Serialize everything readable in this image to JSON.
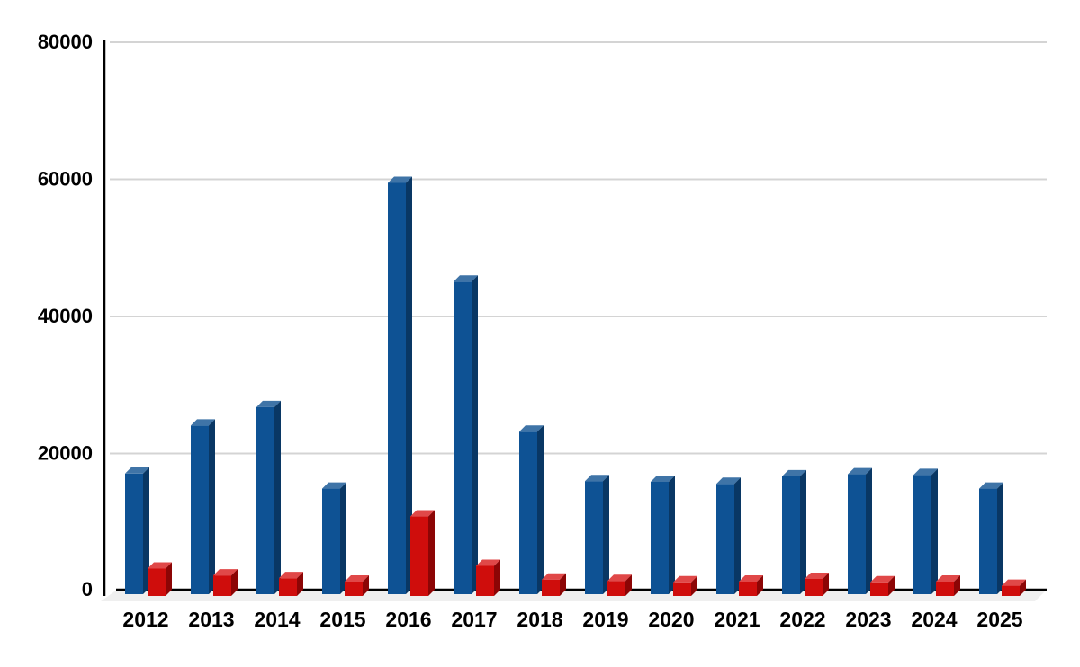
{
  "chart_data": {
    "type": "bar",
    "style": "3d-column-clustered",
    "title": "",
    "xlabel": "",
    "ylabel": "",
    "categories": [
      "2012",
      "2013",
      "2014",
      "2015",
      "2016",
      "2017",
      "2018",
      "2019",
      "2020",
      "2021",
      "2022",
      "2023",
      "2024",
      "2025"
    ],
    "series": [
      {
        "name": "series-1-blue",
        "color": "#0E5294",
        "top_color": "#3F74A7",
        "side_color": "#093764",
        "values": [
          17600,
          24600,
          27300,
          15400,
          60000,
          45600,
          23700,
          16500,
          16400,
          16100,
          17200,
          17500,
          17400,
          15400
        ]
      },
      {
        "name": "series-2-red",
        "color": "#CF0D0C",
        "top_color": "#E04848",
        "side_color": "#8C0505",
        "values": [
          4000,
          3000,
          2600,
          2100,
          11600,
          4400,
          2400,
          2200,
          2000,
          2100,
          2500,
          2000,
          2100,
          1500
        ]
      }
    ],
    "ylim": [
      0,
      80000
    ],
    "yticks": [
      0,
      20000,
      40000,
      60000,
      80000
    ],
    "ytick_labels": [
      "0",
      "20000",
      "40000",
      "60000",
      "80000"
    ],
    "grid": true,
    "legend": "none",
    "background_color": "#FFFFFF",
    "axis_color": "#000000",
    "gridline_color": "#D4D4D4",
    "floor_color": "#EFEFEF"
  }
}
